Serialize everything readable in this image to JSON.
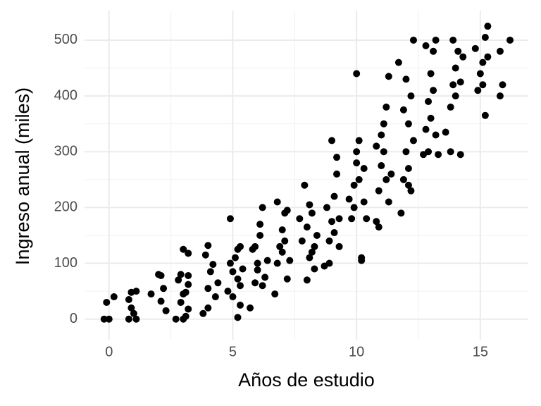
{
  "chart_data": {
    "type": "scatter",
    "x_label": "Años de estudio",
    "y_label": "Ingreso anual (miles)",
    "color": "#000000",
    "grid": true,
    "xlim": [
      -0.99,
      16.94
    ],
    "ylim": [
      -37,
      553
    ],
    "xticks": [
      0,
      5,
      10,
      15
    ],
    "yticks": [
      0,
      100,
      200,
      300,
      400,
      500
    ],
    "x": [
      -0.2,
      0,
      -0.1,
      0.2,
      0.8,
      1.1,
      0.9,
      0.8,
      0.9,
      1.1,
      1,
      1.7,
      2,
      2.1,
      2.2,
      2.3,
      2.1,
      2.7,
      3,
      3.1,
      3.2,
      2.9,
      3,
      3.2,
      2.9,
      3.2,
      3,
      3.2,
      2.8,
      3.1,
      3.8,
      4,
      4.1,
      4.2,
      4,
      3.9,
      4.3,
      4,
      4.4,
      4.8,
      5,
      5.1,
      4.9,
      5.2,
      5.3,
      5.2,
      5,
      5.3,
      5.2,
      4.9,
      5.3,
      5.4,
      5.7,
      5.9,
      6,
      6.1,
      6.2,
      6.3,
      6.2,
      5.8,
      6,
      6.4,
      5.9,
      6.1,
      6.7,
      6.8,
      6.9,
      7,
      7.1,
      7.2,
      7,
      7.2,
      7.3,
      6.8,
      7.1,
      7.8,
      8,
      8.1,
      8.2,
      8.3,
      8,
      8.4,
      7.9,
      8.2,
      8.1,
      7.7,
      8.3,
      8.7,
      8.9,
      9,
      9.1,
      9.2,
      9,
      9.3,
      8.8,
      9.1,
      9.3,
      8.9,
      9.2,
      9.8,
      9.9,
      10,
      10.1,
      10,
      10.2,
      10.2,
      10.3,
      9.9,
      10.1,
      10.3,
      10.4,
      10,
      9.7,
      10.8,
      10.9,
      11,
      11.1,
      11.2,
      11.3,
      11.2,
      10.9,
      11,
      11.3,
      11.4,
      10.8,
      11.1,
      11.8,
      11.9,
      12,
      12.1,
      12.2,
      12.3,
      12.2,
      12,
      12.1,
      11.9,
      12.3,
      11.7,
      12.1,
      12.7,
      12.8,
      12.9,
      13,
      13.1,
      13.2,
      13,
      12.9,
      13.1,
      13.3,
      12.8,
      13.2,
      13.6,
      13.8,
      13.9,
      14,
      14.1,
      14.2,
      13.8,
      14.3,
      13.9,
      14,
      14.2,
      14.9,
      15,
      15.1,
      15.2,
      15.3,
      15.2,
      15.1,
      14.8,
      15.3,
      15.8,
      15.8,
      15.9,
      16.2
    ],
    "values": [
      0,
      0,
      30,
      40,
      0,
      0,
      20,
      35,
      48,
      50,
      10,
      45,
      80,
      78,
      55,
      15,
      32,
      0,
      0,
      5,
      18,
      30,
      45,
      62,
      80,
      78,
      125,
      118,
      70,
      48,
      10,
      55,
      85,
      98,
      132,
      115,
      40,
      20,
      65,
      50,
      85,
      110,
      180,
      125,
      130,
      72,
      40,
      25,
      3,
      100,
      60,
      90,
      20,
      65,
      100,
      150,
      200,
      75,
      60,
      125,
      88,
      105,
      130,
      170,
      45,
      100,
      130,
      160,
      190,
      195,
      120,
      72,
      105,
      210,
      140,
      140,
      165,
      205,
      120,
      90,
      70,
      150,
      240,
      190,
      110,
      180,
      130,
      95,
      140,
      175,
      220,
      260,
      320,
      130,
      200,
      155,
      180,
      100,
      290,
      180,
      240,
      280,
      320,
      440,
      110,
      105,
      210,
      200,
      250,
      270,
      180,
      300,
      215,
      175,
      230,
      275,
      300,
      380,
      435,
      250,
      165,
      330,
      210,
      260,
      310,
      350,
      190,
      250,
      300,
      350,
      400,
      500,
      230,
      430,
      270,
      375,
      320,
      460,
      240,
      295,
      340,
      390,
      440,
      480,
      500,
      360,
      300,
      410,
      295,
      490,
      330,
      335,
      380,
      420,
      450,
      480,
      295,
      300,
      470,
      500,
      400,
      425,
      410,
      440,
      460,
      505,
      525,
      365,
      420,
      485,
      470,
      400,
      480,
      420,
      500
    ]
  }
}
